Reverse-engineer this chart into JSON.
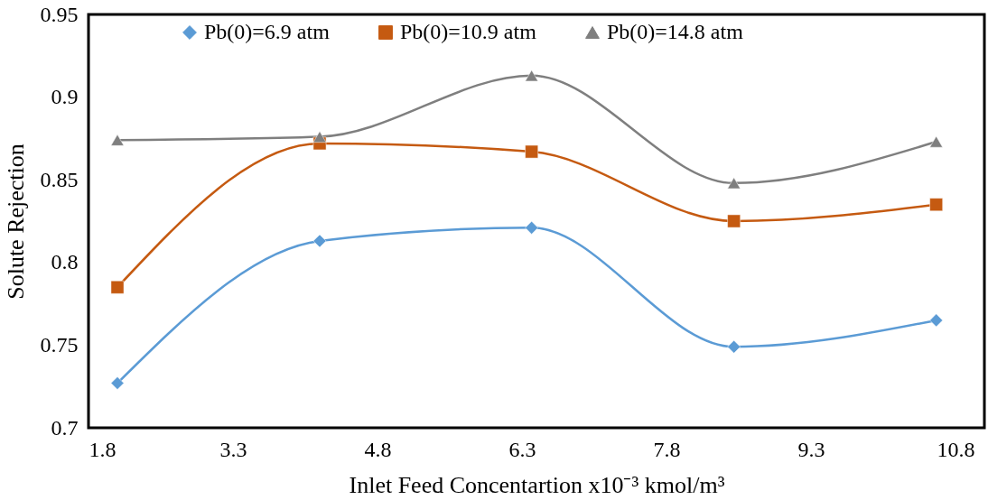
{
  "chart_data": {
    "type": "line",
    "xlabel": "Inlet Feed Concentartion x10⁻³ kmol/m³",
    "ylabel": "Solute Rejection",
    "x": [
      2.1,
      4.2,
      6.4,
      8.5,
      10.6
    ],
    "xlim": [
      1.8,
      11.1
    ],
    "xticks": [
      1.8,
      3.3,
      4.8,
      6.3,
      7.8,
      9.3,
      10.8
    ],
    "ylim": [
      0.7,
      0.95
    ],
    "yticks": [
      0.7,
      0.75,
      0.8,
      0.85,
      0.9,
      0.95
    ],
    "grid": false,
    "legend": "top",
    "line_style": "solid",
    "series": [
      {
        "name": "Pb(0)=6.9 atm",
        "color": "#5b9bd5",
        "marker": "diamond",
        "values": [
          0.727,
          0.813,
          0.821,
          0.749,
          0.765
        ]
      },
      {
        "name": "Pb(0)=10.9 atm",
        "color": "#c55a11",
        "marker": "square",
        "values": [
          0.785,
          0.872,
          0.867,
          0.825,
          0.835
        ]
      },
      {
        "name": "Pb(0)=14.8 atm",
        "color": "#7f7f7f",
        "marker": "triangle",
        "values": [
          0.874,
          0.876,
          0.913,
          0.848,
          0.873
        ]
      }
    ]
  }
}
